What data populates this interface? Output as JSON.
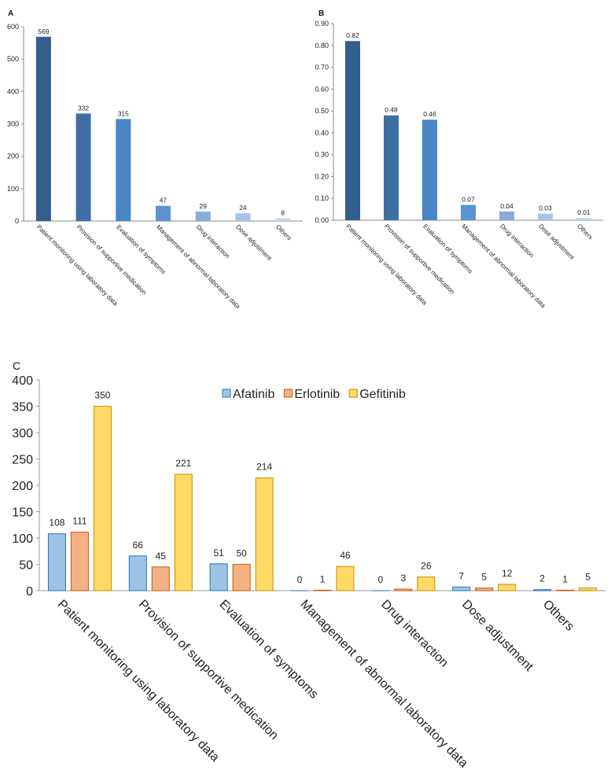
{
  "chart_data": [
    {
      "panel": "A",
      "type": "bar",
      "categories": [
        "Patient monitoring using laboratory data",
        "Provision of supportive medication",
        "Evaluation of symptoms",
        "Management of abnormal laboratory data",
        "Drug interaction",
        "Dose adjustment",
        "Others"
      ],
      "values": [
        569,
        332,
        315,
        47,
        29,
        24,
        8
      ],
      "value_labels": [
        "569",
        "332",
        "315",
        "47",
        "29",
        "24",
        "8"
      ],
      "yticks": [
        "0",
        "100",
        "200",
        "300",
        "400",
        "500",
        "600"
      ],
      "ylim": [
        0,
        600
      ],
      "colors": [
        "#345e8d",
        "#3e6ea3",
        "#4a86c5",
        "#5b93d1",
        "#87acd9",
        "#a6c3e6",
        "#c2d6ef"
      ],
      "grid": false
    },
    {
      "panel": "B",
      "type": "bar",
      "categories": [
        "Patient monitoring using laboratory data",
        "Provision of supportive medication",
        "Evaluation of symptoms",
        "Management of abnormal laboratory data",
        "Drug interaction",
        "Dose adjustment",
        "Others"
      ],
      "values": [
        0.82,
        0.48,
        0.46,
        0.07,
        0.04,
        0.03,
        0.01
      ],
      "value_labels": [
        "0.82",
        "0.48",
        "0.46",
        "0.07",
        "0.04",
        "0.03",
        "0.01"
      ],
      "yticks": [
        "0.00",
        "0.10",
        "0.20",
        "0.30",
        "0.40",
        "0.50",
        "0.60",
        "0.70",
        "0.80",
        "0.90"
      ],
      "ylim": [
        0,
        0.9
      ],
      "colors": [
        "#345e8d",
        "#3e6ea3",
        "#4a86c5",
        "#5b93d1",
        "#87acd9",
        "#a6c3e6",
        "#c2d6ef"
      ],
      "grid": false
    },
    {
      "panel": "C",
      "type": "bar",
      "categories": [
        "Patient monitoring using laboratory data",
        "Provision of supportive medication",
        "Evaluation of symptoms",
        "Management of abnormal laboratory data",
        "Drug interaction",
        "Dose adjustment",
        "Others"
      ],
      "series": [
        {
          "name": "Afatinib",
          "values": [
            108,
            66,
            51,
            0,
            0,
            7,
            2
          ],
          "color": "#9dc3e6",
          "stroke": "#2e75b6"
        },
        {
          "name": "Erlotinib",
          "values": [
            111,
            45,
            50,
            1,
            3,
            5,
            1
          ],
          "color": "#f4b183",
          "stroke": "#c55a11"
        },
        {
          "name": "Gefitinib",
          "values": [
            350,
            221,
            214,
            46,
            26,
            12,
            5
          ],
          "color": "#ffd966",
          "stroke": "#bf9000"
        }
      ],
      "yticks": [
        "0",
        "50",
        "100",
        "150",
        "200",
        "250",
        "300",
        "350",
        "400"
      ],
      "ylim": [
        0,
        400
      ],
      "legend": "top-center",
      "grid": false
    }
  ]
}
